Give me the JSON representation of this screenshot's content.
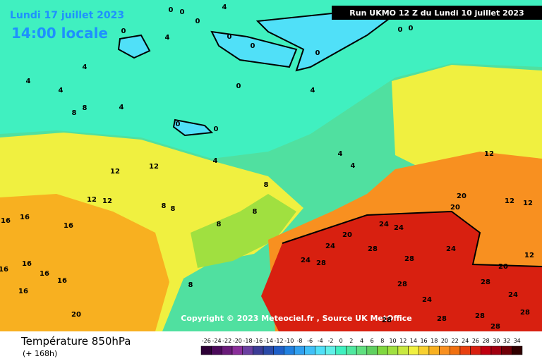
{
  "header": {
    "date": "Lundi 17 juillet 2023",
    "time": "14:00 locale",
    "run": "Run UKMO 12 Z du Lundi 10 juillet 2023"
  },
  "copyright": "Copyright © 2023 Meteociel.fr , Source UK MetOffice",
  "footer": {
    "title": "Température 850hPa",
    "lead": "(+ 168h)"
  },
  "legend": {
    "ticks": [
      -26,
      -24,
      -22,
      -20,
      -18,
      -16,
      -14,
      -12,
      -10,
      -8,
      -6,
      -4,
      -2,
      0,
      2,
      4,
      6,
      8,
      10,
      12,
      14,
      16,
      18,
      20,
      22,
      24,
      26,
      28,
      30,
      32,
      34
    ],
    "colors": [
      "#2d0036",
      "#4b0a5a",
      "#6a1b7a",
      "#8a2e9a",
      "#6a3fa0",
      "#3c3c96",
      "#2a4aa8",
      "#1e5fc8",
      "#2080e0",
      "#30a0f0",
      "#40c0f8",
      "#50e0f8",
      "#60f0e8",
      "#40f0c0",
      "#50e8a0",
      "#60e080",
      "#60d060",
      "#80d840",
      "#a0e040",
      "#c8e840",
      "#f0f040",
      "#f8d030",
      "#f8b020",
      "#f89020",
      "#f07010",
      "#e84010",
      "#d82010",
      "#c00010",
      "#a00010",
      "#700008",
      "#300000"
    ]
  },
  "contour_labels": [
    0,
    0,
    4,
    0,
    4,
    0,
    0,
    0,
    0,
    0,
    0,
    4,
    4,
    4,
    8,
    8,
    4,
    0,
    0,
    0,
    4,
    4,
    12,
    12,
    8,
    4,
    4,
    12,
    12,
    16,
    16,
    8,
    8,
    16,
    8,
    8,
    12,
    20,
    20,
    12,
    12,
    24,
    24,
    20,
    24,
    28,
    24,
    28,
    24,
    28,
    20,
    12,
    16,
    16,
    16,
    8,
    28,
    28,
    24,
    24,
    28,
    28,
    28,
    28,
    28,
    20,
    16,
    16
  ]
}
